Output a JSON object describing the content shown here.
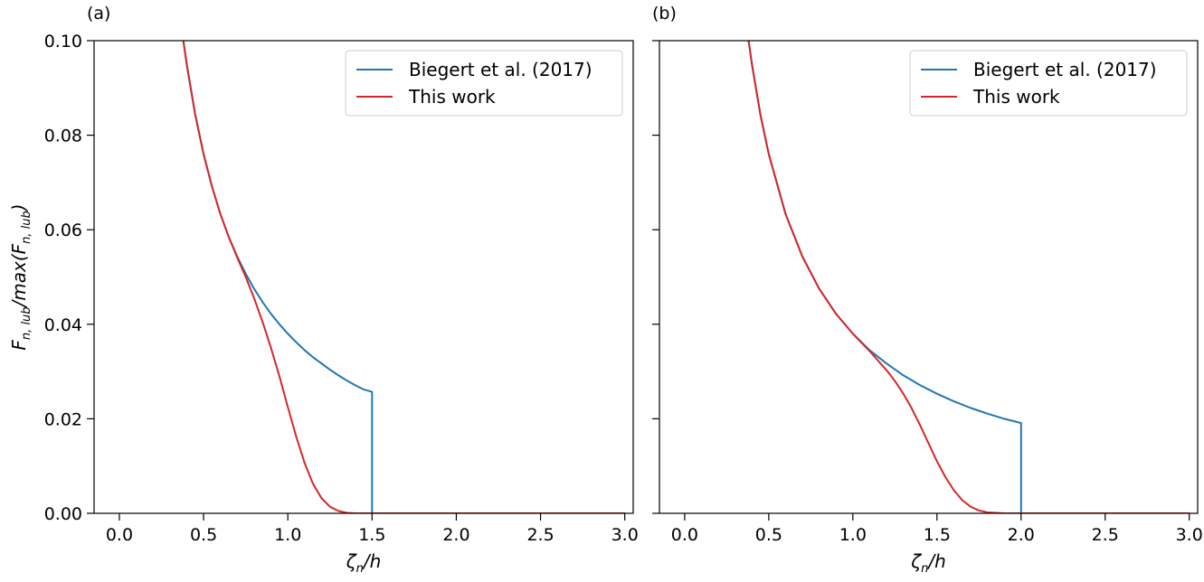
{
  "chart_data": [
    {
      "type": "line",
      "panel_label": "(a)",
      "xlabel": {
        "main": "ζ",
        "sub": "n",
        "tail": "/h"
      },
      "ylabel": {
        "main1": "F",
        "sub1": "n, lub",
        "mid": "/max(F",
        "sub2": "n, lub",
        "tail": ")"
      },
      "xlim": [
        -0.15,
        3.05
      ],
      "ylim": [
        0,
        0.1
      ],
      "xticks": [
        "0.0",
        "0.5",
        "1.0",
        "1.5",
        "2.0",
        "2.5",
        "3.0"
      ],
      "xtick_values": [
        0,
        0.5,
        1,
        1.5,
        2,
        2.5,
        3
      ],
      "yticks": [
        "0.00",
        "0.02",
        "0.04",
        "0.06",
        "0.08",
        "0.10"
      ],
      "ytick_values": [
        0,
        0.02,
        0.04,
        0.06,
        0.08,
        0.1
      ],
      "legend": "top-right",
      "grid": false,
      "series": [
        {
          "name": "Biegert et al. (2017)",
          "color": "#1f77b4",
          "x": [
            0.38,
            0.4,
            0.45,
            0.5,
            0.55,
            0.6,
            0.65,
            0.7,
            0.75,
            0.8,
            0.85,
            0.9,
            0.95,
            1.0,
            1.05,
            1.1,
            1.15,
            1.2,
            1.25,
            1.3,
            1.35,
            1.4,
            1.45,
            1.5,
            1.5,
            3.0
          ],
          "y": [
            0.1,
            0.095,
            0.0844,
            0.076,
            0.0691,
            0.0633,
            0.0584,
            0.0543,
            0.0507,
            0.0475,
            0.0447,
            0.0422,
            0.04,
            0.038,
            0.0362,
            0.0345,
            0.033,
            0.0317,
            0.0304,
            0.0292,
            0.0281,
            0.0271,
            0.0262,
            0.0257,
            0,
            0
          ]
        },
        {
          "name": "This work",
          "color": "#d62728",
          "x": [
            0.38,
            0.4,
            0.45,
            0.5,
            0.55,
            0.6,
            0.65,
            0.7,
            0.75,
            0.8,
            0.85,
            0.9,
            0.95,
            1.0,
            1.05,
            1.1,
            1.15,
            1.2,
            1.25,
            1.3,
            1.35,
            1.4,
            1.45,
            1.5,
            1.6,
            3.0
          ],
          "y": [
            0.1,
            0.095,
            0.0844,
            0.076,
            0.0691,
            0.0633,
            0.0584,
            0.0541,
            0.05,
            0.0455,
            0.0405,
            0.035,
            0.029,
            0.0225,
            0.0162,
            0.0106,
            0.0062,
            0.0032,
            0.0014,
            0.0005,
            0.0001,
            0.0,
            0.0,
            0.0,
            0.0,
            0.0
          ]
        }
      ]
    },
    {
      "type": "line",
      "panel_label": "(b)",
      "xlabel": {
        "main": "ζ",
        "sub": "n",
        "tail": "/h"
      },
      "xlim": [
        -0.15,
        3.05
      ],
      "ylim": [
        0,
        0.1
      ],
      "xticks": [
        "0.0",
        "0.5",
        "1.0",
        "1.5",
        "2.0",
        "2.5",
        "3.0"
      ],
      "xtick_values": [
        0,
        0.5,
        1,
        1.5,
        2,
        2.5,
        3
      ],
      "ytick_values": [
        0,
        0.02,
        0.04,
        0.06,
        0.08,
        0.1
      ],
      "legend": "top-right",
      "grid": false,
      "series": [
        {
          "name": "Biegert et al. (2017)",
          "color": "#1f77b4",
          "x": [
            0.38,
            0.4,
            0.45,
            0.5,
            0.6,
            0.7,
            0.8,
            0.9,
            1.0,
            1.1,
            1.2,
            1.3,
            1.4,
            1.5,
            1.6,
            1.7,
            1.8,
            1.9,
            2.0,
            2.0,
            3.0
          ],
          "y": [
            0.1,
            0.095,
            0.0844,
            0.076,
            0.0633,
            0.0543,
            0.0475,
            0.0422,
            0.038,
            0.0345,
            0.0317,
            0.0292,
            0.0271,
            0.0253,
            0.0237,
            0.0223,
            0.0211,
            0.02,
            0.0191,
            0,
            0
          ]
        },
        {
          "name": "This work",
          "color": "#d62728",
          "x": [
            0.38,
            0.4,
            0.45,
            0.5,
            0.6,
            0.7,
            0.8,
            0.9,
            1.0,
            1.1,
            1.2,
            1.25,
            1.3,
            1.35,
            1.4,
            1.45,
            1.5,
            1.55,
            1.6,
            1.65,
            1.7,
            1.75,
            1.8,
            1.9,
            2.0,
            3.0
          ],
          "y": [
            0.1,
            0.095,
            0.0844,
            0.076,
            0.0633,
            0.0543,
            0.0475,
            0.0422,
            0.038,
            0.0343,
            0.0303,
            0.028,
            0.0253,
            0.0222,
            0.0186,
            0.0148,
            0.011,
            0.0077,
            0.0049,
            0.0028,
            0.0014,
            0.0006,
            0.0002,
            0.0,
            0.0,
            0.0
          ]
        }
      ]
    }
  ]
}
